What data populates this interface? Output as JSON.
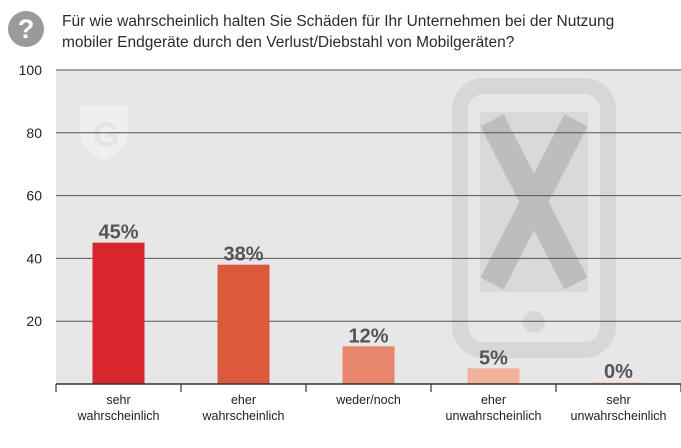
{
  "question": {
    "icon": "question-mark-icon",
    "line1": "Für wie wahrscheinlich halten Sie Schäden  für Ihr Unternehmen bei der Nutzung",
    "line2": "mobiler Endgeräte durch den Verlust/Diebstahl von Mobilgeräten?"
  },
  "watermark": {
    "brand": "G DATA",
    "logo_icon": "g-data-shield-logo",
    "device_icon": "smartphone-crossed-icon"
  },
  "chart_data": {
    "type": "bar",
    "categories": [
      [
        "sehr",
        "wahrscheinlich"
      ],
      [
        "eher",
        "wahrscheinlich"
      ],
      [
        "weder/noch"
      ],
      [
        "eher",
        "unwahrscheinlich"
      ],
      [
        "sehr",
        "unwahrscheinlich"
      ]
    ],
    "values": [
      45,
      38,
      12,
      5,
      0
    ],
    "value_labels": [
      "45%",
      "38%",
      "12%",
      "5%",
      "0%"
    ],
    "colors": [
      "#d9262c",
      "#dc5a3c",
      "#e8866b",
      "#f3b39a",
      "#f6d2c0"
    ],
    "yticks": [
      20,
      40,
      60,
      80,
      100
    ],
    "ylim": [
      0,
      100
    ],
    "grid": true,
    "title": "",
    "xlabel": "",
    "ylabel": ""
  }
}
